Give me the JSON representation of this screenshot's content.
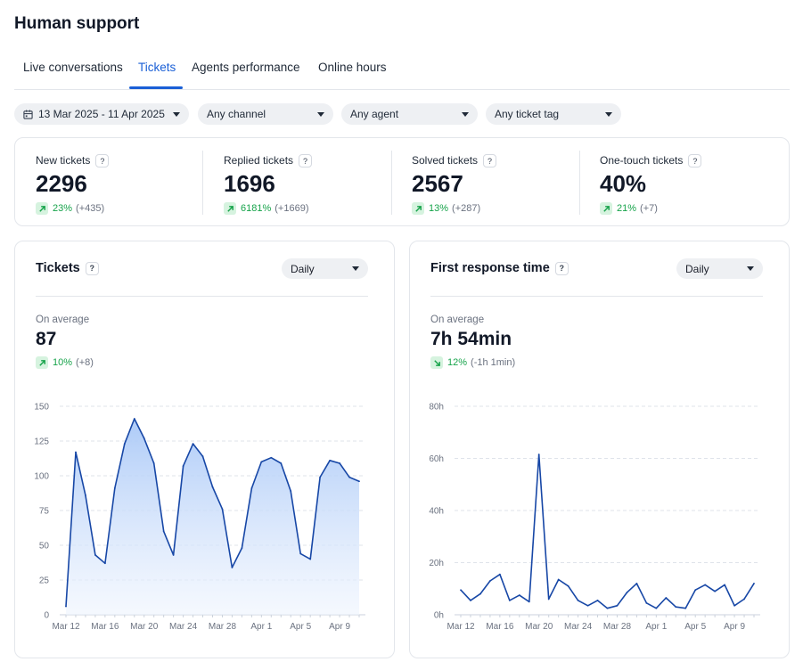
{
  "page": {
    "title": "Human support"
  },
  "tabs": [
    {
      "label": "Live conversations",
      "active": false
    },
    {
      "label": "Tickets",
      "active": true
    },
    {
      "label": "Agents performance",
      "active": false
    },
    {
      "label": "Online hours",
      "active": false
    }
  ],
  "filters": {
    "date_range": "13 Mar 2025 - 11 Apr 2025",
    "channel": "Any channel",
    "agent": "Any agent",
    "ticket_tag": "Any ticket tag"
  },
  "stats": [
    {
      "label": "New tickets",
      "value": "2296",
      "delta_pct": "23%",
      "delta_abs": "(+435)",
      "trend": "up"
    },
    {
      "label": "Replied tickets",
      "value": "1696",
      "delta_pct": "6181%",
      "delta_abs": "(+1669)",
      "trend": "up"
    },
    {
      "label": "Solved tickets",
      "value": "2567",
      "delta_pct": "13%",
      "delta_abs": "(+287)",
      "trend": "up"
    },
    {
      "label": "One-touch tickets",
      "value": "40%",
      "delta_pct": "21%",
      "delta_abs": "(+7)",
      "trend": "up"
    }
  ],
  "help_glyph": "?",
  "colors": {
    "accent": "#1a5fd6",
    "line": "#1747a6",
    "positive": "#16a34a",
    "positive_bg": "#d6f3df"
  },
  "panels": {
    "tickets": {
      "title": "Tickets",
      "granularity": "Daily",
      "avg_label": "On average",
      "avg_value": "87",
      "delta_pct": "10%",
      "delta_abs": "(+8)",
      "trend": "up"
    },
    "frt": {
      "title": "First response time",
      "granularity": "Daily",
      "avg_label": "On average",
      "avg_value": "7h 54min",
      "delta_pct": "12%",
      "delta_abs": "(-1h 1min)",
      "trend": "down"
    }
  },
  "chart_data": [
    {
      "type": "area",
      "x_tick_labels": [
        "Mar 12",
        "Mar 16",
        "Mar 20",
        "Mar 24",
        "Mar 28",
        "Apr 1",
        "Apr 5",
        "Apr 9"
      ],
      "y_tick_labels": [
        "150",
        "125",
        "100",
        "75",
        "50",
        "25",
        "0"
      ],
      "ylim": [
        0,
        150
      ],
      "grid": true,
      "values": [
        6,
        117,
        86,
        43,
        37,
        91,
        123,
        141,
        127,
        109,
        60,
        43,
        107,
        123,
        114,
        92,
        76,
        34,
        48,
        91,
        110,
        113,
        109,
        89,
        44,
        40,
        99,
        111,
        109,
        99,
        96
      ]
    },
    {
      "type": "line",
      "x_tick_labels": [
        "Mar 12",
        "Mar 16",
        "Mar 20",
        "Mar 24",
        "Mar 28",
        "Apr 1",
        "Apr 5",
        "Apr 9"
      ],
      "y_tick_labels": [
        "80h",
        "60h",
        "40h",
        "20h",
        "0h"
      ],
      "ylim": [
        0,
        80
      ],
      "grid": true,
      "values": [
        9.5,
        5.5,
        8,
        13,
        15.5,
        5.5,
        7.5,
        5,
        61.5,
        6,
        13.5,
        11,
        5.5,
        3.5,
        5.5,
        2.5,
        3.5,
        8.5,
        12,
        4.5,
        2.5,
        6.5,
        3,
        2.5,
        9.5,
        11.5,
        9,
        11.5,
        3.5,
        6,
        12
      ]
    }
  ]
}
